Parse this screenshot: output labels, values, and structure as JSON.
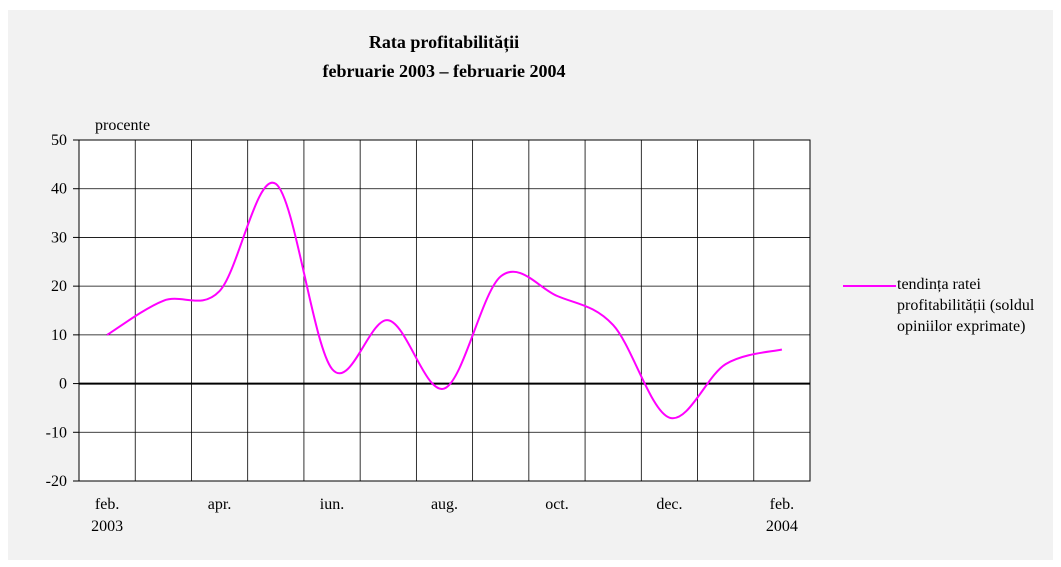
{
  "chart_data": {
    "type": "line",
    "title": "Rata profitabilității",
    "subtitle": "februarie 2003 – februarie 2004",
    "y_axis_label": "procente",
    "categories": [
      "feb. 2003",
      null,
      "apr.",
      null,
      "iun.",
      null,
      "aug.",
      null,
      "oct.",
      null,
      "dec.",
      null,
      "feb. 2004"
    ],
    "series": [
      {
        "name": "tendința ratei profitabilității (soldul opiniilor exprimate)",
        "color": "#ff00ff",
        "values": [
          10,
          17,
          19,
          41,
          3,
          13,
          -1,
          22,
          18,
          12,
          -7,
          4,
          7
        ]
      }
    ],
    "ylim": [
      -20,
      50
    ],
    "yticks": [
      -20,
      -10,
      0,
      10,
      20,
      30,
      40,
      50
    ],
    "grid": true,
    "legend": "right"
  }
}
